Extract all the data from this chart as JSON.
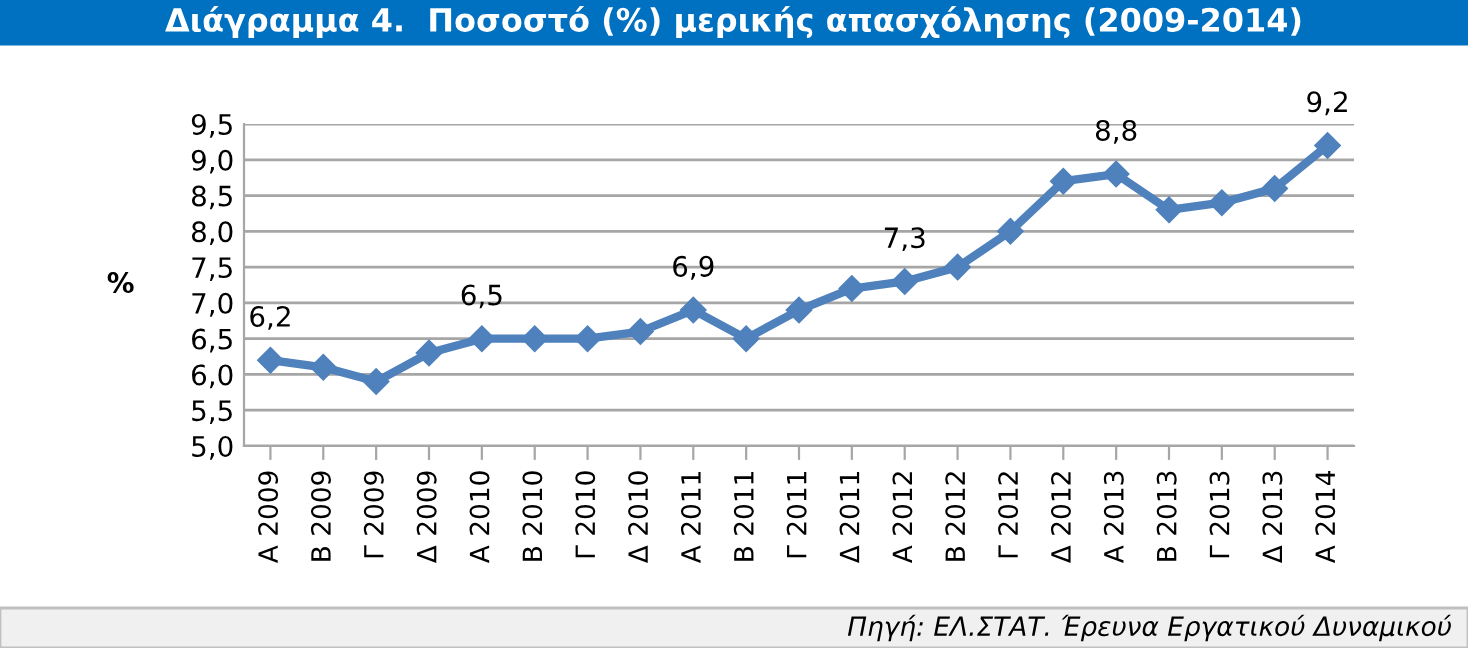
{
  "chart_data": {
    "type": "line",
    "title": "Διάγραμμα 4.  Ποσοστό (%) μερικής απασχόλησης (2009-2014)",
    "ylabel": "%",
    "categories": [
      "Α 2009",
      "Β 2009",
      "Γ 2009",
      "Δ 2009",
      "Α 2010",
      "Β 2010",
      "Γ 2010",
      "Δ 2010",
      "Α 2011",
      "Β 2011",
      "Γ 2011",
      "Δ 2011",
      "Α 2012",
      "Β 2012",
      "Γ 2012",
      "Δ 2012",
      "Α 2013",
      "Β 2013",
      "Γ 2013",
      "Δ 2013",
      "Α 2014"
    ],
    "series": [
      {
        "color": "#4f81bd",
        "values": [
          6.2,
          6.1,
          5.9,
          6.3,
          6.5,
          6.5,
          6.5,
          6.6,
          6.9,
          6.5,
          6.9,
          7.2,
          7.3,
          7.5,
          8.0,
          8.7,
          8.8,
          8.3,
          8.4,
          8.6,
          9.2
        ],
        "value_labels": [
          "6,2",
          null,
          null,
          null,
          "6,5",
          null,
          null,
          null,
          "6,9",
          null,
          null,
          null,
          "7,3",
          null,
          null,
          null,
          "8,8",
          null,
          null,
          null,
          "9,2"
        ]
      }
    ],
    "ylim": [
      5,
      9.5
    ],
    "yticks": [
      {
        "value": 5,
        "label": "5,0"
      },
      {
        "value": 5.5,
        "label": "5,5"
      },
      {
        "value": 6,
        "label": "6,0"
      },
      {
        "value": 6.5,
        "label": "6,5"
      },
      {
        "value": 7,
        "label": "7,0"
      },
      {
        "value": 7.5,
        "label": "7,5"
      },
      {
        "value": 8,
        "label": "8,0"
      },
      {
        "value": 8.5,
        "label": "8,5"
      },
      {
        "value": 9,
        "label": "9,0"
      },
      {
        "value": 9.5,
        "label": "9,5"
      }
    ],
    "grid": "y",
    "marker": "diamond",
    "line_style": "solid",
    "annotations": [
      "Πηγή: ΕΛ.ΣΤΑΤ. Έρευνα Εργατικού Δυναμικού"
    ]
  }
}
